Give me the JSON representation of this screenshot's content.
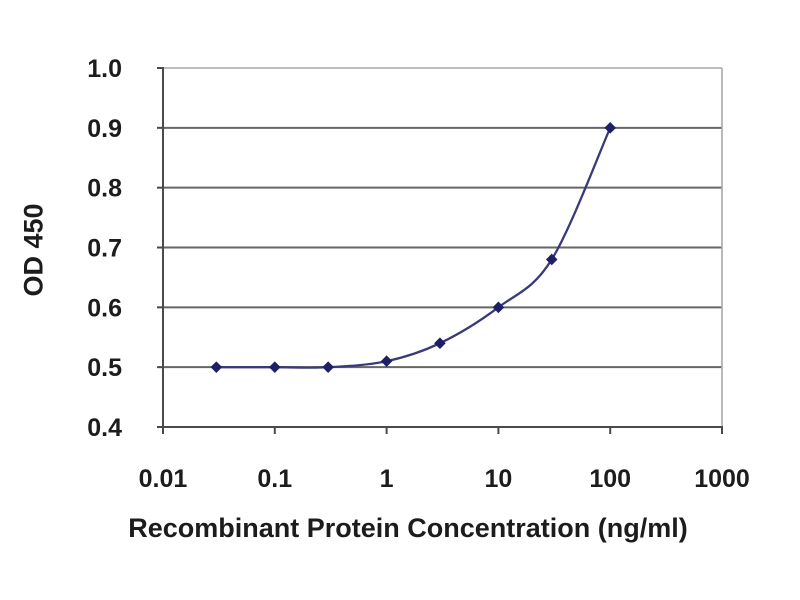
{
  "chart_data": {
    "type": "line",
    "title": "",
    "xlabel": "Recombinant Protein Concentration (ng/ml)",
    "ylabel": "OD 450",
    "x_scale": "log",
    "xlim": [
      0.01,
      1000
    ],
    "ylim": [
      0.4,
      1.0
    ],
    "x_ticks": [
      0.01,
      0.1,
      1,
      10,
      100,
      1000
    ],
    "x_tick_labels": [
      "0.01",
      "0.1",
      "1",
      "10",
      "100",
      "1000"
    ],
    "y_ticks": [
      0.4,
      0.5,
      0.6,
      0.7,
      0.8,
      0.9,
      1.0
    ],
    "y_tick_labels": [
      "0.4",
      "0.5",
      "0.6",
      "0.7",
      "0.8",
      "0.9",
      "1.0"
    ],
    "grid": true,
    "legend": "none",
    "series": [
      {
        "name": "OD 450",
        "marker": "diamond",
        "x": [
          0.03,
          0.1,
          0.3,
          1,
          3,
          10,
          30,
          100
        ],
        "y": [
          0.5,
          0.5,
          0.5,
          0.51,
          0.54,
          0.6,
          0.68,
          0.9
        ]
      }
    ],
    "colors": {
      "line": "#3a3a78",
      "marker": "#1f1f66",
      "gridline": "#666666",
      "axis": "#4a4a4a",
      "border": "#a8a8a8",
      "text": "#1c1c1c",
      "background": "#ffffff"
    }
  }
}
